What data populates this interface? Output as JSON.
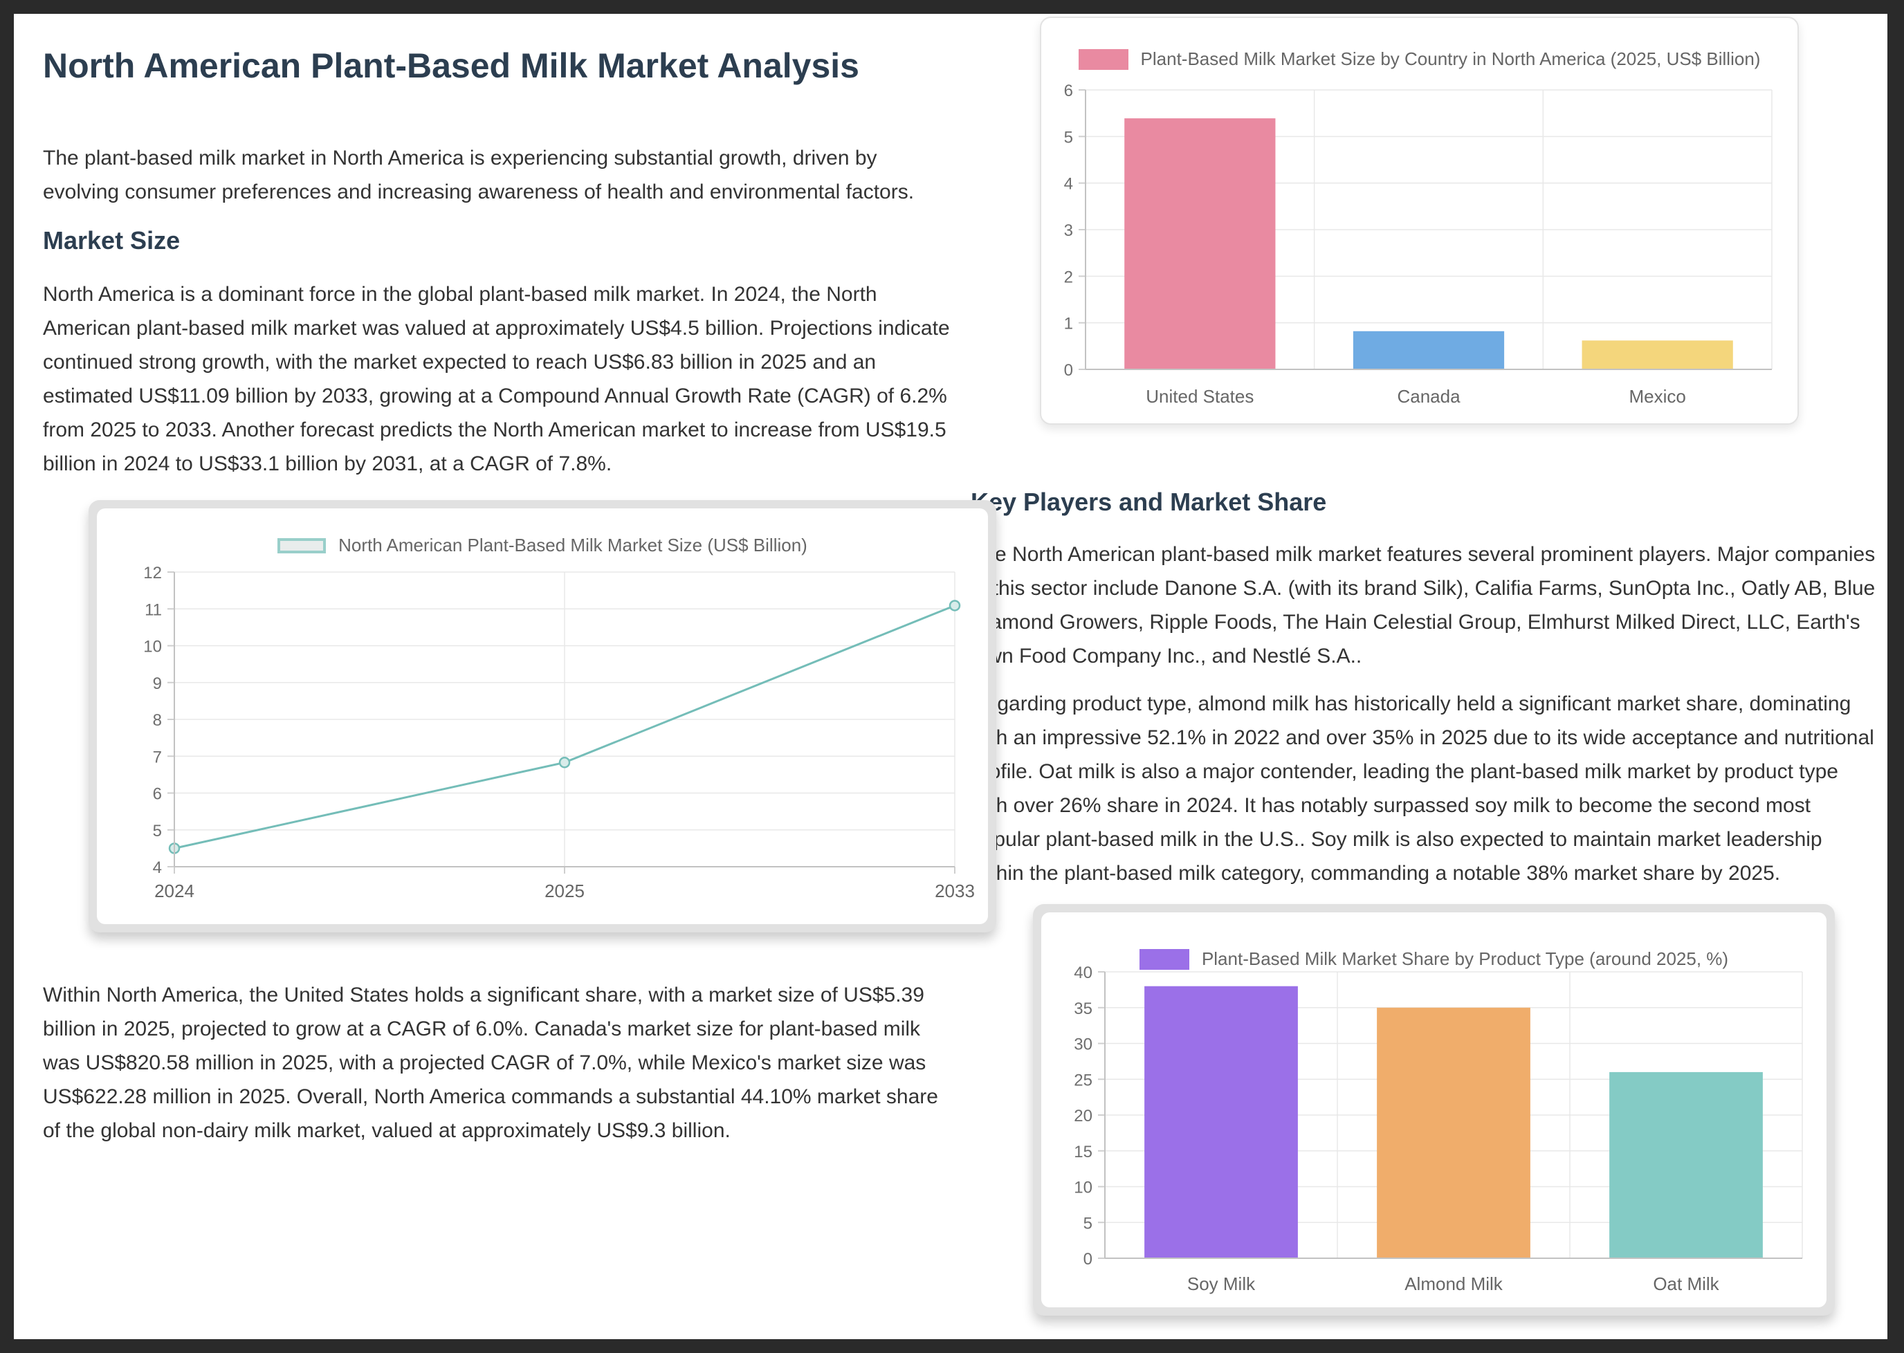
{
  "page": {
    "title": "North American Plant-Based Milk Market Analysis",
    "intro": "The plant-based milk market in North America is experiencing substantial growth, driven by evolving consumer preferences and increasing awareness of health and environmental factors.",
    "sections": {
      "market_size": {
        "heading": "Market Size",
        "para1": "North America is a dominant force in the global plant-based milk market. In 2024, the North American plant-based milk market was valued at approximately US$4.5 billion. Projections indicate continued strong growth, with the market expected to reach US$6.83 billion in 2025 and an estimated US$11.09 billion by 2033, growing at a Compound Annual Growth Rate (CAGR) of 6.2% from 2025 to 2033. Another forecast predicts the North American market to increase from US$19.5 billion in 2024 to US$33.1 billion by 2031, at a CAGR of 7.8%.",
        "para2": "Within North America, the United States holds a significant share, with a market size of US$5.39 billion in 2025, projected to grow at a CAGR of 6.0%. Canada's market size for plant-based milk was US$820.58 million in 2025, with a projected CAGR of 7.0%, while Mexico's market size was US$622.28 million in 2025. Overall, North America commands a substantial 44.10% market share of the global non-dairy milk market, valued at approximately US$9.3 billion."
      },
      "key_players": {
        "heading": "Key Players and Market Share",
        "para1": "The North American plant-based milk market features several prominent players. Major companies in this sector include Danone S.A. (with its brand Silk), Califia Farms, SunOpta Inc., Oatly AB, Blue Diamond Growers, Ripple Foods, The Hain Celestial Group, Elmhurst Milked Direct, LLC, Earth's Own Food Company Inc., and Nestlé S.A..",
        "para2": "Regarding product type, almond milk has historically held a significant market share, dominating with an impressive 52.1% in 2022 and over 35% in 2025 due to its wide acceptance and nutritional profile. Oat milk is also a major contender, leading the plant-based milk market by product type with over 26% share in 2024. It has notably surpassed soy milk to become the second most popular plant-based milk in the U.S.. Soy milk is also expected to maintain market leadership within the plant-based milk category, commanding a notable 38% market share by 2025."
      }
    }
  },
  "chart_data": [
    {
      "type": "line",
      "title": "North American Plant-Based Milk Market Size (US$ Billion)",
      "categories": [
        "2024",
        "2025",
        "2033"
      ],
      "values": [
        4.5,
        6.83,
        11.09
      ],
      "ylim": [
        4,
        12
      ],
      "ytick_step": 1,
      "grid": true,
      "legend_position": "top",
      "color": "#74bdb8",
      "point_fill": "#d8ecea",
      "legend_fill": "#e9edec",
      "legend_border": "#99cfca"
    },
    {
      "type": "bar",
      "title": "Plant-Based Milk Market Size by Country in North America (2025, US$ Billion)",
      "categories": [
        "United States",
        "Canada",
        "Mexico"
      ],
      "values": [
        5.39,
        0.82,
        0.62
      ],
      "ylim": [
        0,
        6
      ],
      "ytick_step": 1,
      "grid": true,
      "legend_position": "top",
      "bar_colors": [
        "#e98aa1",
        "#6fabe3",
        "#f4d67c"
      ]
    },
    {
      "type": "bar",
      "title": "Plant-Based Milk Market Share by Product Type (around 2025, %)",
      "categories": [
        "Soy Milk",
        "Almond Milk",
        "Oat Milk"
      ],
      "values": [
        38,
        35,
        26
      ],
      "ylim": [
        0,
        40
      ],
      "ytick_step": 5,
      "grid": true,
      "legend_position": "top",
      "bar_colors": [
        "#9b70e8",
        "#f0ad6b",
        "#84cbc5"
      ]
    }
  ]
}
